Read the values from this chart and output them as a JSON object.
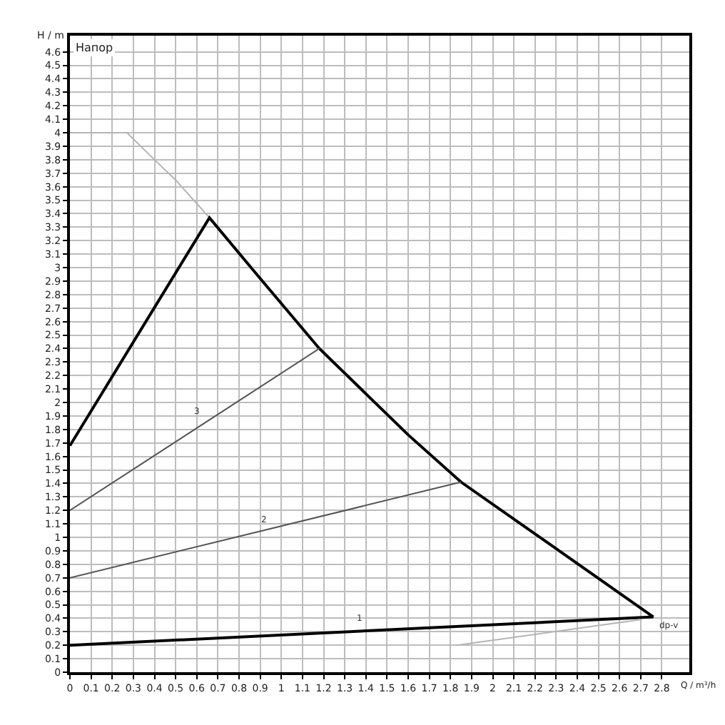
{
  "chart_data": {
    "type": "line",
    "title": "Напор",
    "xlabel": "Q / m³/h",
    "ylabel": "H / m",
    "xlim": [
      0,
      2.93
    ],
    "ylim": [
      0,
      4.72
    ],
    "xticks": [
      0,
      0.1,
      0.2,
      0.3,
      0.4,
      0.5,
      0.6,
      0.7,
      0.8,
      0.9,
      1,
      1.1,
      1.2,
      1.3,
      1.4,
      1.5,
      1.6,
      1.7,
      1.8,
      1.9,
      2,
      2.1,
      2.2,
      2.3,
      2.4,
      2.5,
      2.6,
      2.7,
      2.8
    ],
    "yticks": [
      0,
      0.1,
      0.2,
      0.3,
      0.4,
      0.5,
      0.6,
      0.7,
      0.8,
      0.9,
      1,
      1.1,
      1.2,
      1.3,
      1.4,
      1.5,
      1.6,
      1.7,
      1.8,
      1.9,
      2,
      2.1,
      2.2,
      2.3,
      2.4,
      2.5,
      2.6,
      2.7,
      2.8,
      2.9,
      3,
      3.1,
      3.2,
      3.3,
      3.4,
      3.5,
      3.6,
      3.7,
      3.8,
      3.9,
      4,
      4.1,
      4.2,
      4.3,
      4.4,
      4.5,
      4.6
    ],
    "grid": true,
    "marker": "none",
    "line_style": "solid",
    "series": [
      {
        "color": "#b4b4b4",
        "x": [
          0,
          0.27,
          0.4,
          0.5,
          0.66
        ],
        "values": [
          4.0,
          4.0,
          3.8,
          3.65,
          3.37
        ]
      },
      {
        "color": "#000000",
        "x": [
          0,
          0.66,
          0.9,
          1.18,
          1.6,
          1.85,
          2.16,
          2.76
        ],
        "values": [
          1.68,
          3.37,
          2.92,
          2.4,
          1.76,
          1.41,
          1.07,
          0.41
        ]
      },
      {
        "color": "#555555",
        "x": [
          0,
          1.18
        ],
        "values": [
          1.2,
          2.4
        ]
      },
      {
        "color": "#555555",
        "x": [
          0,
          1.85
        ],
        "values": [
          0.7,
          1.41
        ]
      },
      {
        "color": "#000000",
        "x": [
          0,
          2.76
        ],
        "values": [
          0.2,
          0.41
        ]
      },
      {
        "color": "#b4b4b4",
        "x": [
          1.83,
          2.7
        ],
        "values": [
          0.2,
          0.39
        ]
      }
    ],
    "annotations": [
      {
        "text": "3",
        "x": 0.6,
        "y": 1.87
      },
      {
        "text": "2",
        "x": 0.92,
        "y": 1.07
      },
      {
        "text": "1",
        "x": 1.37,
        "y": 0.34
      },
      {
        "text": "dp-v",
        "x": 2.76,
        "y": 0.41
      }
    ]
  }
}
